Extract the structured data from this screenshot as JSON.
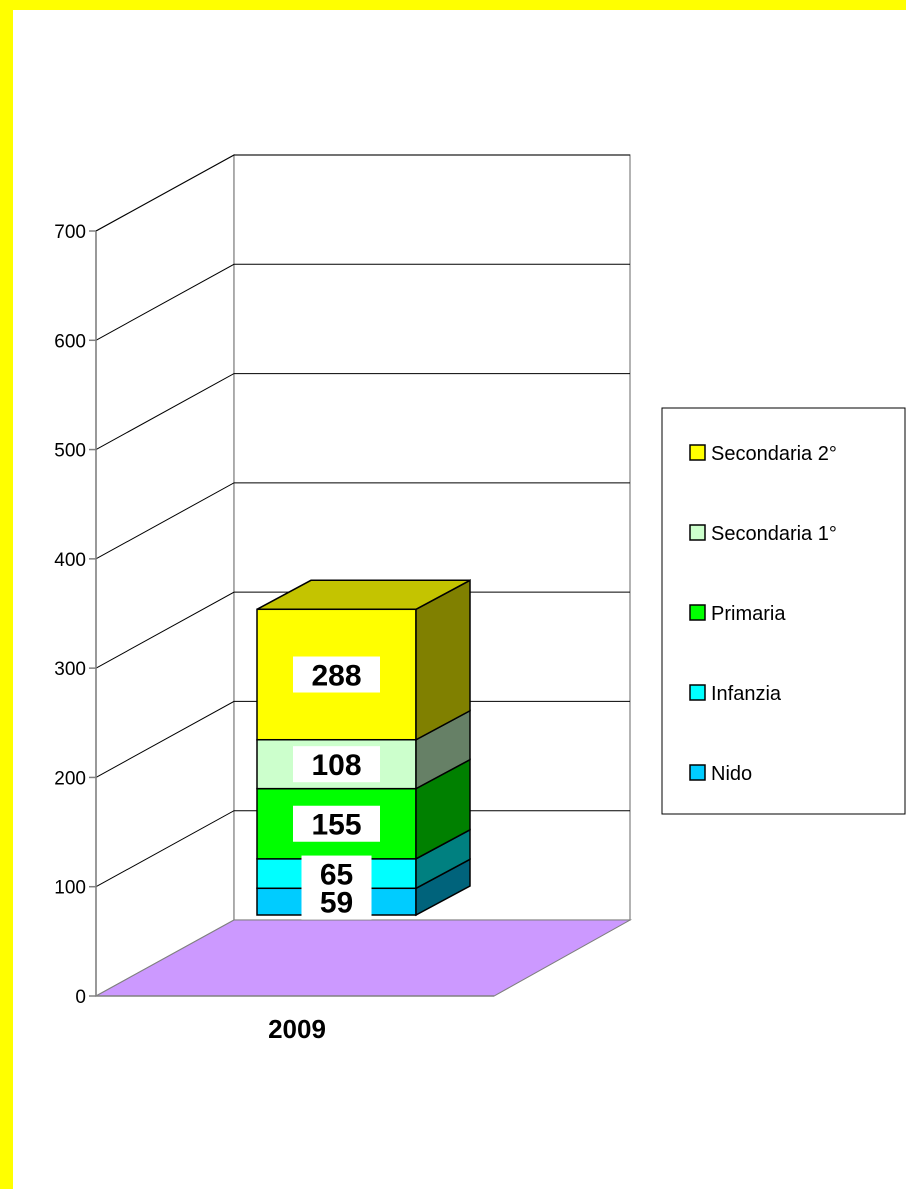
{
  "chart_data": {
    "type": "bar",
    "stacked": true,
    "three_d": true,
    "categories": [
      "2009"
    ],
    "series": [
      {
        "name": "Nido",
        "values": [
          59
        ],
        "color": "#00ccff",
        "side": "#00637b",
        "top": "#00a6cc"
      },
      {
        "name": "Infanzia",
        "values": [
          65
        ],
        "color": "#00ffff",
        "side": "#008080",
        "top": "#00cccc"
      },
      {
        "name": "Primaria",
        "values": [
          155
        ],
        "color": "#00ff00",
        "side": "#008000",
        "top": "#00cc00"
      },
      {
        "name": "Secondaria 1°",
        "values": [
          108
        ],
        "color": "#ccffcc",
        "side": "#668066",
        "top": "#a3cca3"
      },
      {
        "name": "Secondaria 2°",
        "values": [
          288
        ],
        "color": "#ffff00",
        "side": "#808000",
        "top": "#c4c400"
      }
    ],
    "ylim": [
      0,
      700
    ],
    "yticks": [
      "0",
      "100",
      "200",
      "300",
      "400",
      "500",
      "600",
      "700"
    ],
    "grid": true,
    "floor_color": "#cc99ff",
    "legend_position": "right",
    "legend_order": [
      "Secondaria 2°",
      "Secondaria 1°",
      "Primaria",
      "Infanzia",
      "Nido"
    ],
    "frame_color": "#ffff00",
    "title": "",
    "xlabel": "",
    "ylabel": ""
  }
}
